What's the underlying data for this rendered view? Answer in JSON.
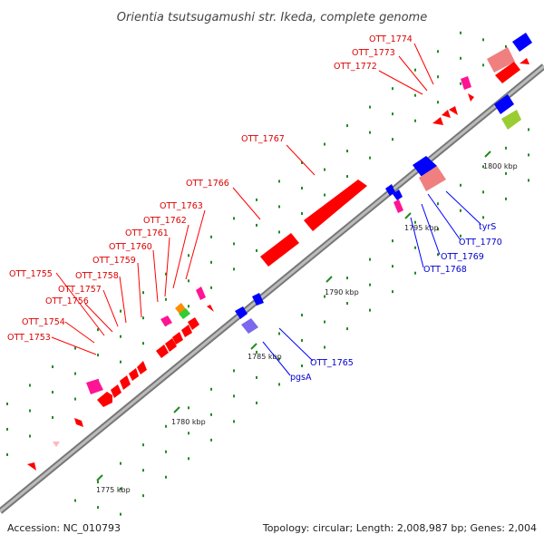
{
  "title": "Orientia tsutsugamushi str. Ikeda, complete genome",
  "footer": {
    "accession": "Accession: NC_010793",
    "stats": "Topology: circular; Length: 2,008,987 bp; Genes: 2,004"
  },
  "scale_labels": [
    "1775 kbp",
    "1780 kbp",
    "1785 kbp",
    "1790 kbp",
    "1795 kbp",
    "1800 kbp"
  ],
  "gene_labels_red": [
    "OTT_1774",
    "OTT_1773",
    "OTT_1772",
    "OTT_1767",
    "OTT_1766",
    "OTT_1763",
    "OTT_1762",
    "OTT_1761",
    "OTT_1760",
    "OTT_1759",
    "OTT_1758",
    "OTT_1757",
    "OTT_1756",
    "OTT_1755",
    "OTT_1754",
    "OTT_1753"
  ],
  "gene_labels_blue": [
    "tyrS",
    "OTT_1770",
    "OTT_1769",
    "OTT_1768",
    "OTT_1765",
    "pgsA"
  ],
  "colors": {
    "backbone": "#999999",
    "forward_cds": "#ff0000",
    "reverse_cds": "#0000ff",
    "pseudo_forward": "#f08080",
    "pseudo_reverse": "#7b68ee",
    "rna": "#ff1493",
    "other": "#9acd32",
    "tick": "#228b22",
    "label_forward": "#dd0000",
    "label_reverse": "#0000cc"
  }
}
